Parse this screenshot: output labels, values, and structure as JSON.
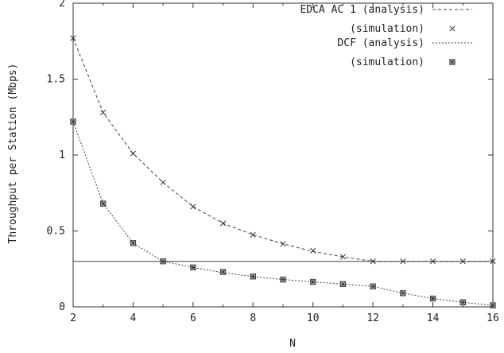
{
  "chart_data": {
    "type": "line",
    "xlabel": "N",
    "ylabel": "Throughput per Station (Mbps)",
    "xlim": [
      2,
      16
    ],
    "ylim": [
      0,
      2
    ],
    "x_ticks": [
      "2",
      "4",
      "6",
      "8",
      "10",
      "12",
      "14",
      "16"
    ],
    "y_ticks": [
      "0",
      "0.5",
      "1",
      "1.5",
      "2"
    ],
    "legend_position": "top-right",
    "series": [
      {
        "name": "EDCA AC 1 (analysis)",
        "style": "dashed",
        "x": [
          2,
          3,
          4,
          5,
          6,
          7,
          8,
          9,
          10,
          11,
          12,
          13,
          14,
          15,
          16
        ],
        "y": [
          1.77,
          1.28,
          1.01,
          0.82,
          0.66,
          0.55,
          0.475,
          0.415,
          0.365,
          0.33,
          0.3,
          0.3,
          0.3,
          0.3,
          0.3
        ]
      },
      {
        "name": "(simulation)",
        "marker": "x",
        "x": [
          2,
          3,
          4,
          5,
          6,
          7,
          8,
          9,
          10,
          11,
          12,
          13,
          14,
          15,
          16
        ],
        "y": [
          1.77,
          1.28,
          1.01,
          0.82,
          0.66,
          0.55,
          0.475,
          0.415,
          0.37,
          0.33,
          0.3,
          0.3,
          0.3,
          0.3,
          0.3
        ]
      },
      {
        "name": "DCF (analysis)",
        "style": "dotted",
        "x": [
          2,
          3,
          4,
          5,
          6,
          7,
          8,
          9,
          10,
          11,
          12,
          13,
          14,
          15,
          16
        ],
        "y": [
          1.22,
          0.68,
          0.42,
          0.3,
          0.26,
          0.225,
          0.2,
          0.18,
          0.165,
          0.15,
          0.135,
          0.09,
          0.055,
          0.03,
          0.01
        ]
      },
      {
        "name": "(simulation)",
        "marker": "boxed-star",
        "x": [
          2,
          3,
          4,
          5,
          6,
          7,
          8,
          9,
          10,
          11,
          12,
          13,
          14,
          15,
          16
        ],
        "y": [
          1.22,
          0.68,
          0.42,
          0.3,
          0.26,
          0.23,
          0.2,
          0.18,
          0.165,
          0.15,
          0.135,
          0.09,
          0.055,
          0.03,
          0.01
        ]
      }
    ],
    "reference_line": {
      "y": 0.3,
      "style": "solid"
    }
  }
}
